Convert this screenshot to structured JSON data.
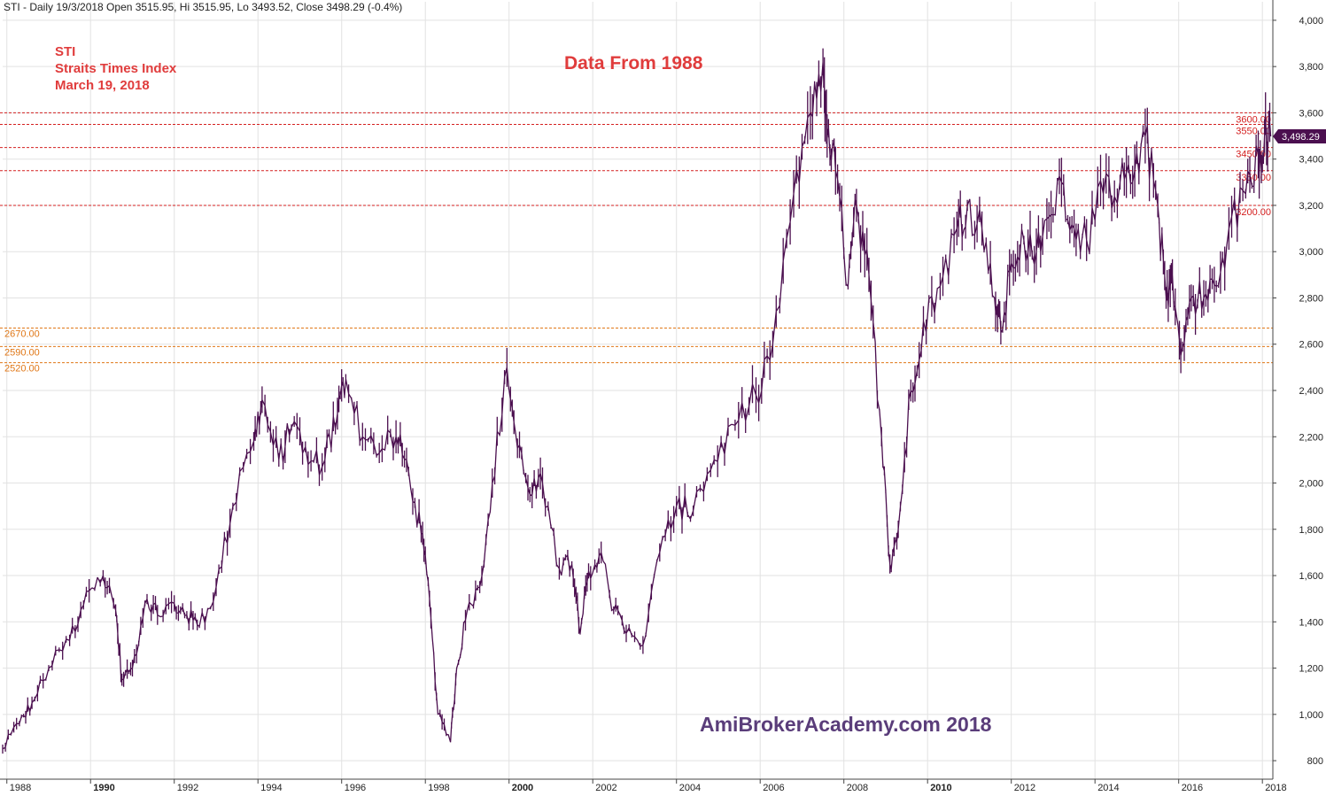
{
  "header": {
    "text": "STI - Daily 19/3/2018 Open 3515.95, Hi 3515.95, Lo 3493.52, Close 3498.29 (-0.4%)"
  },
  "annotations": {
    "line1": "STI",
    "line2": "Straits Times Index",
    "line3": "March 19, 2018",
    "center_title": "Data From 1988",
    "watermark": "AmiBrokerAcademy.com 2018"
  },
  "last_price_tag": "3,498.29",
  "colors": {
    "series": "#4b0f4f",
    "red_line": "#d42020",
    "orange_line": "#e07818",
    "annotation": "#e03c3c",
    "watermark": "#5a3d7a",
    "grid": "#e2e2e2"
  },
  "chart_data": {
    "type": "line",
    "title": "Data From 1988",
    "xlabel": "",
    "ylabel": "",
    "ylim": [
      720,
      4080
    ],
    "xlim": [
      1987.9,
      2018.25
    ],
    "grid": true,
    "y_ticks": [
      "800",
      "1,000",
      "1,200",
      "1,400",
      "1,600",
      "1,800",
      "2,000",
      "2,200",
      "2,400",
      "2,600",
      "2,800",
      "3,000",
      "3,200",
      "3,400",
      "3,600",
      "3,800",
      "4,000"
    ],
    "x_ticks": [
      "1988",
      "1990",
      "1992",
      "1994",
      "1996",
      "1998",
      "2000",
      "2002",
      "2004",
      "2006",
      "2008",
      "2010",
      "2012",
      "2014",
      "2016",
      "2018"
    ],
    "bold_x_ticks": [
      "1990",
      "2000",
      "2010"
    ],
    "series": [
      {
        "x": [
          1987.9,
          1988.3,
          1988.6,
          1989.0,
          1989.5,
          1989.9,
          1990.3,
          1990.6,
          1990.75,
          1991.0,
          1991.3,
          1991.6,
          1992.0,
          1992.3,
          1992.6,
          1993.0,
          1993.4,
          1993.9,
          1994.1,
          1994.5,
          1994.8,
          1995.2,
          1995.6,
          1995.9,
          1996.1,
          1996.5,
          1996.9,
          1997.3,
          1997.6,
          1997.9,
          1998.1,
          1998.3,
          1998.6,
          1998.75,
          1999.0,
          1999.3,
          1999.6,
          1999.95,
          2000.2,
          2000.5,
          2000.8,
          2001.2,
          2001.5,
          2001.7,
          2001.9,
          2002.2,
          2002.5,
          2002.8,
          2003.2,
          2003.6,
          2004.0,
          2004.4,
          2004.9,
          2005.4,
          2005.9,
          2006.3,
          2006.8,
          2007.2,
          2007.5,
          2007.6,
          2007.8,
          2008.1,
          2008.3,
          2008.6,
          2008.9,
          2009.1,
          2009.3,
          2009.6,
          2009.9,
          2010.3,
          2010.7,
          2010.95,
          2011.3,
          2011.6,
          2011.75,
          2012.0,
          2012.3,
          2012.6,
          2012.9,
          2013.2,
          2013.5,
          2013.8,
          2014.2,
          2014.6,
          2014.9,
          2015.2,
          2015.5,
          2015.7,
          2015.85,
          2016.05,
          2016.3,
          2016.6,
          2016.9,
          2017.2,
          2017.6,
          2017.9,
          2018.05,
          2018.2
        ],
        "values": [
          850,
          960,
          1050,
          1200,
          1320,
          1530,
          1600,
          1450,
          1150,
          1200,
          1480,
          1430,
          1480,
          1430,
          1380,
          1550,
          1900,
          2180,
          2360,
          2100,
          2240,
          2080,
          2100,
          2300,
          2450,
          2200,
          2130,
          2200,
          2050,
          1780,
          1500,
          1000,
          880,
          1200,
          1450,
          1550,
          2000,
          2500,
          2150,
          1950,
          2000,
          1630,
          1650,
          1350,
          1620,
          1700,
          1450,
          1350,
          1300,
          1700,
          1900,
          1880,
          2100,
          2250,
          2380,
          2600,
          3250,
          3600,
          3820,
          3500,
          3350,
          2850,
          3200,
          2900,
          2200,
          1650,
          1800,
          2400,
          2700,
          2850,
          3100,
          3200,
          3100,
          2800,
          2650,
          2950,
          3050,
          3000,
          3150,
          3300,
          3100,
          3050,
          3250,
          3300,
          3300,
          3500,
          3200,
          2800,
          2900,
          2550,
          2800,
          2800,
          2850,
          3100,
          3250,
          3420,
          3500,
          3498
        ]
      }
    ],
    "price_levels": [
      {
        "value": 3600,
        "label": "3600.00",
        "color": "red"
      },
      {
        "value": 3550,
        "label": "3550.00",
        "color": "red"
      },
      {
        "value": 3450,
        "label": "3450.00",
        "color": "red"
      },
      {
        "value": 3350,
        "label": "3350.00",
        "color": "red"
      },
      {
        "value": 3200,
        "label": "3200.00",
        "color": "red"
      },
      {
        "value": 2670,
        "label": "2670.00",
        "color": "orange"
      },
      {
        "value": 2590,
        "label": "2590.00",
        "color": "orange"
      },
      {
        "value": 2520,
        "label": "2520.00",
        "color": "orange"
      }
    ],
    "last_value": 3498.29
  }
}
